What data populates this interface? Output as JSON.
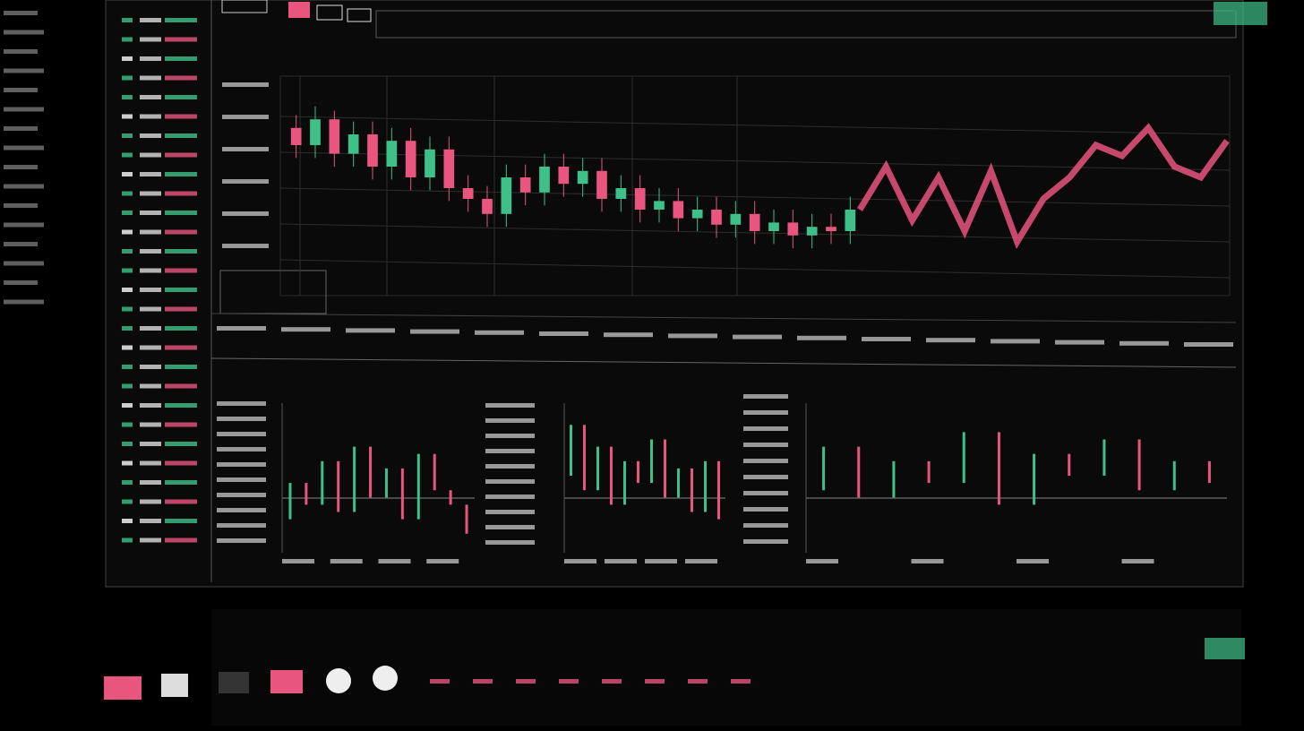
{
  "main_chart": {
    "type": "candlestick",
    "up_color": "#3fc08a",
    "down_color": "#e8557f",
    "ylim": [
      0,
      100
    ],
    "open": [
      78,
      70,
      82,
      66,
      75,
      60,
      72,
      55,
      68,
      50,
      45,
      38,
      55,
      48,
      60,
      52,
      58,
      45,
      50,
      40,
      44,
      36,
      40,
      33,
      38,
      30,
      34,
      28,
      32,
      30
    ],
    "close": [
      70,
      82,
      66,
      75,
      60,
      72,
      55,
      68,
      50,
      45,
      38,
      55,
      48,
      60,
      52,
      58,
      45,
      50,
      40,
      44,
      36,
      40,
      33,
      38,
      30,
      34,
      28,
      32,
      30,
      40
    ],
    "high": [
      84,
      88,
      86,
      81,
      81,
      78,
      78,
      74,
      74,
      56,
      51,
      61,
      61,
      66,
      66,
      64,
      64,
      56,
      56,
      50,
      50,
      46,
      46,
      44,
      44,
      40,
      40,
      38,
      38,
      46
    ],
    "low": [
      64,
      64,
      60,
      60,
      54,
      54,
      49,
      49,
      44,
      39,
      32,
      32,
      42,
      42,
      46,
      46,
      39,
      39,
      34,
      34,
      30,
      30,
      27,
      27,
      24,
      24,
      22,
      22,
      24,
      24
    ],
    "trend": {
      "color": "#e8557f",
      "values": [
        40,
        60,
        35,
        55,
        30,
        58,
        25,
        45,
        55,
        70,
        65,
        78,
        60,
        55,
        72
      ]
    }
  },
  "panels": [
    {
      "type": "candlestick",
      "ylim": [
        0,
        100
      ],
      "open": [
        20,
        45,
        30,
        60,
        25,
        70,
        35,
        55,
        20,
        65,
        40,
        30
      ],
      "close": [
        45,
        30,
        60,
        25,
        70,
        35,
        55,
        20,
        65,
        40,
        30,
        10
      ]
    },
    {
      "type": "candlestick",
      "ylim": [
        0,
        100
      ],
      "open": [
        50,
        85,
        40,
        70,
        30,
        60,
        45,
        75,
        35,
        55,
        25,
        60
      ],
      "close": [
        85,
        40,
        70,
        30,
        60,
        45,
        75,
        35,
        55,
        25,
        60,
        20
      ]
    },
    {
      "type": "candlestick",
      "ylim": [
        0,
        100
      ],
      "open": [
        40,
        70,
        35,
        60,
        45,
        80,
        30,
        65,
        50,
        75,
        40,
        60
      ],
      "close": [
        70,
        35,
        60,
        45,
        80,
        30,
        65,
        50,
        75,
        40,
        60,
        45
      ]
    }
  ]
}
